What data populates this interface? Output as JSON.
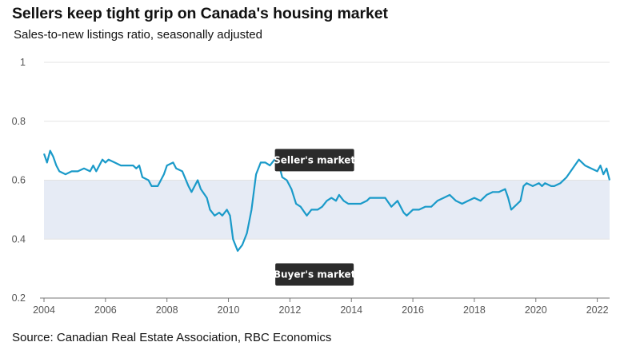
{
  "title": "Sellers keep tight grip on Canada's housing market",
  "subtitle": "Sales-to-new listings ratio, seasonally adjusted",
  "source": "Source: Canadian Real Estate Association, RBC Economics",
  "colors": {
    "line": "#1a9ac9",
    "balanced_band": "#e6ebf5",
    "grid": "#e3e3e3",
    "axis": "#777777",
    "label_box": "#2b2b2b"
  },
  "chart_data": {
    "type": "line",
    "title": "Sellers keep tight grip on Canada's housing market",
    "subtitle": "Sales-to-new listings ratio, seasonally adjusted",
    "xlabel": "",
    "ylabel": "",
    "xlim": [
      2004.0,
      2022.4
    ],
    "ylim": [
      0.2,
      1.0
    ],
    "x_ticks": [
      "2004",
      "2006",
      "2008",
      "2010",
      "2012",
      "2014",
      "2016",
      "2018",
      "2020",
      "2022"
    ],
    "y_ticks": [
      "0.2",
      "0.4",
      "0.6",
      "0.8",
      "1"
    ],
    "grid": true,
    "shaded_band": {
      "from": 0.4,
      "to": 0.6
    },
    "annotations": [
      "Seller's market",
      "Buyer's market"
    ],
    "series": [
      {
        "values": [
          [
            2004.0,
            0.69
          ],
          [
            2004.1,
            0.66
          ],
          [
            2004.2,
            0.7
          ],
          [
            2004.3,
            0.68
          ],
          [
            2004.4,
            0.65
          ],
          [
            2004.5,
            0.63
          ],
          [
            2004.7,
            0.62
          ],
          [
            2004.9,
            0.63
          ],
          [
            2005.1,
            0.63
          ],
          [
            2005.3,
            0.64
          ],
          [
            2005.5,
            0.63
          ],
          [
            2005.6,
            0.65
          ],
          [
            2005.7,
            0.63
          ],
          [
            2005.9,
            0.67
          ],
          [
            2006.0,
            0.66
          ],
          [
            2006.1,
            0.67
          ],
          [
            2006.3,
            0.66
          ],
          [
            2006.5,
            0.65
          ],
          [
            2006.7,
            0.65
          ],
          [
            2006.9,
            0.65
          ],
          [
            2007.0,
            0.64
          ],
          [
            2007.1,
            0.65
          ],
          [
            2007.2,
            0.61
          ],
          [
            2007.4,
            0.6
          ],
          [
            2007.5,
            0.58
          ],
          [
            2007.7,
            0.58
          ],
          [
            2007.9,
            0.62
          ],
          [
            2008.0,
            0.65
          ],
          [
            2008.2,
            0.66
          ],
          [
            2008.3,
            0.64
          ],
          [
            2008.5,
            0.63
          ],
          [
            2008.7,
            0.58
          ],
          [
            2008.8,
            0.56
          ],
          [
            2008.9,
            0.58
          ],
          [
            2009.0,
            0.6
          ],
          [
            2009.1,
            0.57
          ],
          [
            2009.3,
            0.54
          ],
          [
            2009.4,
            0.5
          ],
          [
            2009.55,
            0.48
          ],
          [
            2009.7,
            0.49
          ],
          [
            2009.8,
            0.48
          ],
          [
            2009.95,
            0.5
          ],
          [
            2010.05,
            0.48
          ],
          [
            2010.15,
            0.4
          ],
          [
            2010.3,
            0.36
          ],
          [
            2010.45,
            0.38
          ],
          [
            2010.6,
            0.42
          ],
          [
            2010.75,
            0.5
          ],
          [
            2010.9,
            0.62
          ],
          [
            2011.05,
            0.66
          ],
          [
            2011.2,
            0.66
          ],
          [
            2011.35,
            0.65
          ],
          [
            2011.5,
            0.67
          ],
          [
            2011.6,
            0.67
          ],
          [
            2011.75,
            0.61
          ],
          [
            2011.9,
            0.6
          ],
          [
            2012.05,
            0.57
          ],
          [
            2012.2,
            0.52
          ],
          [
            2012.35,
            0.51
          ],
          [
            2012.55,
            0.48
          ],
          [
            2012.7,
            0.5
          ],
          [
            2012.9,
            0.5
          ],
          [
            2013.05,
            0.51
          ],
          [
            2013.2,
            0.53
          ],
          [
            2013.35,
            0.54
          ],
          [
            2013.5,
            0.53
          ],
          [
            2013.6,
            0.55
          ],
          [
            2013.75,
            0.53
          ],
          [
            2013.9,
            0.52
          ],
          [
            2014.1,
            0.52
          ],
          [
            2014.3,
            0.52
          ],
          [
            2014.5,
            0.53
          ],
          [
            2014.6,
            0.54
          ],
          [
            2014.7,
            0.54
          ],
          [
            2014.9,
            0.54
          ],
          [
            2015.1,
            0.54
          ],
          [
            2015.3,
            0.51
          ],
          [
            2015.5,
            0.53
          ],
          [
            2015.7,
            0.49
          ],
          [
            2015.8,
            0.48
          ],
          [
            2016.0,
            0.5
          ],
          [
            2016.2,
            0.5
          ],
          [
            2016.4,
            0.51
          ],
          [
            2016.6,
            0.51
          ],
          [
            2016.8,
            0.53
          ],
          [
            2017.0,
            0.54
          ],
          [
            2017.2,
            0.55
          ],
          [
            2017.4,
            0.53
          ],
          [
            2017.6,
            0.52
          ],
          [
            2017.8,
            0.53
          ],
          [
            2018.0,
            0.54
          ],
          [
            2018.2,
            0.53
          ],
          [
            2018.4,
            0.55
          ],
          [
            2018.6,
            0.56
          ],
          [
            2018.8,
            0.56
          ],
          [
            2019.0,
            0.57
          ],
          [
            2019.1,
            0.54
          ],
          [
            2019.2,
            0.5
          ],
          [
            2019.3,
            0.51
          ],
          [
            2019.5,
            0.53
          ],
          [
            2019.6,
            0.58
          ],
          [
            2019.7,
            0.59
          ],
          [
            2019.9,
            0.58
          ],
          [
            2020.1,
            0.59
          ],
          [
            2020.2,
            0.58
          ],
          [
            2020.3,
            0.59
          ],
          [
            2020.5,
            0.58
          ],
          [
            2020.6,
            0.58
          ],
          [
            2020.8,
            0.59
          ],
          [
            2021.0,
            0.61
          ],
          [
            2021.2,
            0.64
          ],
          [
            2021.4,
            0.67
          ],
          [
            2021.6,
            0.65
          ],
          [
            2021.8,
            0.64
          ],
          [
            2022.0,
            0.63
          ],
          [
            2022.1,
            0.65
          ],
          [
            2022.2,
            0.62
          ],
          [
            2022.3,
            0.64
          ],
          [
            2022.4,
            0.6
          ]
        ]
      }
    ]
  }
}
